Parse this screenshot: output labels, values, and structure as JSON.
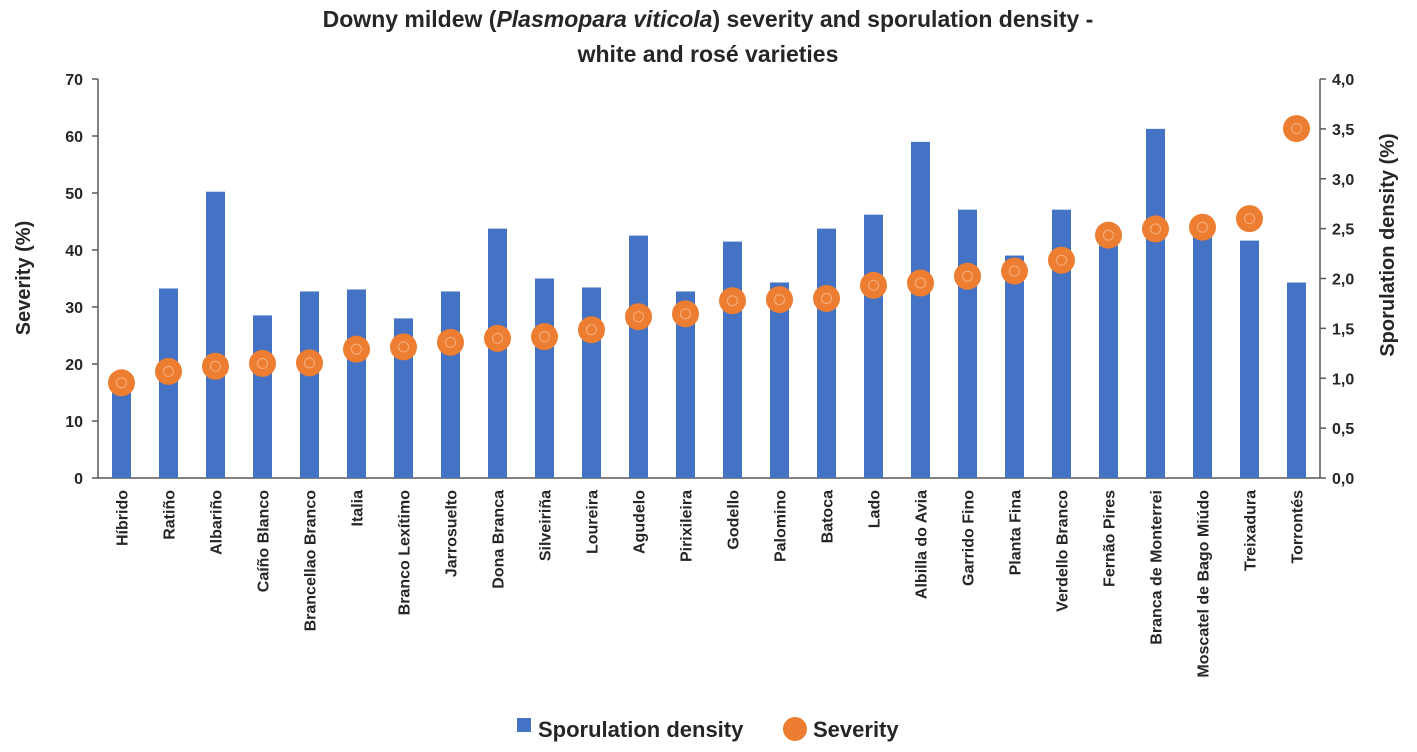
{
  "chart_data": {
    "type": "bar+scatter",
    "title_part1": "Downy mildew (",
    "title_italic": "Plasmopara viticola",
    "title_part2": ") severity and sporulation density -",
    "title_line2": "white and rosé varieties",
    "categories": [
      "Híbrido",
      "Ratiño",
      "Albariño",
      "Caíño Blanco",
      "Brancellao Branco",
      "Italia",
      "Branco Lexítimo",
      "Jarrosuelto",
      "Dona Branca",
      "Silveiriña",
      "Loureira",
      "Agudelo",
      "Pirixileira",
      "Godello",
      "Palomino",
      "Batoca",
      "Lado",
      "Albilla do Avia",
      "Garrido Fino",
      "Planta Fina",
      "Verdello Branco",
      "Fernão Pires",
      "Branca de Monterrei",
      "Moscatel de Bago Miúdo",
      "Treixadura",
      "Torrontés"
    ],
    "y_left": {
      "label": "Severity  (%)",
      "min": 0,
      "max": 70,
      "ticks": [
        "0",
        "10",
        "20",
        "30",
        "40",
        "50",
        "60",
        "70"
      ]
    },
    "y_right": {
      "label": "Sporulation density (%)",
      "min": 0,
      "max": 4,
      "ticks": [
        "0,0",
        "0,5",
        "1,0",
        "1,5",
        "2,0",
        "2,5",
        "3,0",
        "3,5",
        "4,0"
      ]
    },
    "series": [
      {
        "name": "Sporulation density",
        "type": "bar",
        "axis": "right",
        "color": "#4472C4",
        "values": [
          0.99,
          1.9,
          2.87,
          1.63,
          1.87,
          1.89,
          1.6,
          1.87,
          2.5,
          2.0,
          1.91,
          2.43,
          1.87,
          2.37,
          1.96,
          2.5,
          2.64,
          3.37,
          2.69,
          2.23,
          2.69,
          2.33,
          3.5,
          2.47,
          2.38,
          1.96
        ]
      },
      {
        "name": "Severity",
        "type": "scatter",
        "axis": "left",
        "color": "#ED7D31",
        "values": [
          16.7,
          18.7,
          19.6,
          20.1,
          20.2,
          22.6,
          23.0,
          23.8,
          24.5,
          24.8,
          26.0,
          28.3,
          28.8,
          31.1,
          31.3,
          31.5,
          33.8,
          34.2,
          35.4,
          36.3,
          38.2,
          42.6,
          43.7,
          44.0,
          45.5,
          61.3
        ]
      }
    ],
    "legend": {
      "position": "bottom"
    }
  }
}
